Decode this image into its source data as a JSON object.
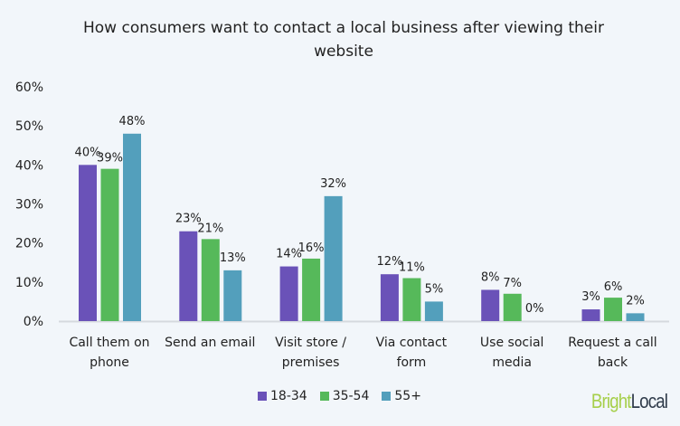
{
  "chart_data": {
    "type": "bar",
    "title": "How consumers want to contact a local business after viewing their website",
    "categories": [
      [
        "Call them on",
        "phone"
      ],
      [
        "Send an email"
      ],
      [
        "Visit store /",
        "premises"
      ],
      [
        "Via contact",
        "form"
      ],
      [
        "Use social",
        "media"
      ],
      [
        "Request a call",
        "back"
      ]
    ],
    "series": [
      {
        "name": "18-34",
        "color": "#6a52b8",
        "values": [
          40,
          23,
          14,
          12,
          8,
          3
        ]
      },
      {
        "name": "35-54",
        "color": "#56b95a",
        "values": [
          39,
          21,
          16,
          11,
          7,
          6
        ]
      },
      {
        "name": "55+",
        "color": "#539fbc",
        "values": [
          48,
          13,
          32,
          5,
          0,
          2
        ]
      }
    ],
    "ylim": [
      0,
      60
    ],
    "yticks": [
      "0%",
      "10%",
      "20%",
      "30%",
      "40%",
      "50%",
      "60%"
    ],
    "grid": false,
    "legend": "bottom"
  },
  "logo": {
    "part1": "Bright",
    "part2": "Local",
    "color1": "#a6cf4a",
    "color2": "#2f3b4a"
  }
}
